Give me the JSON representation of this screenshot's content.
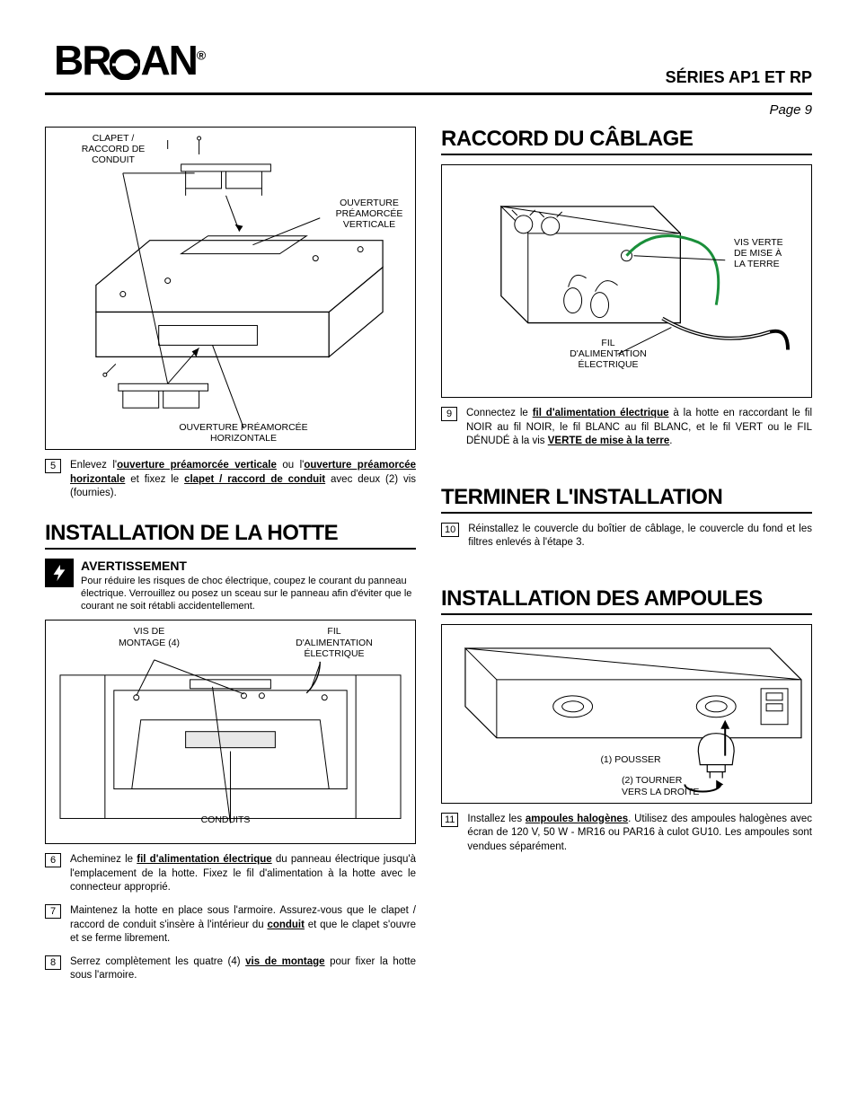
{
  "header": {
    "brand": "BROAN",
    "series": "SÉRIES AP1 ET RP",
    "page": "Page 9"
  },
  "left": {
    "diag1": {
      "label_clapet": "CLAPET /\nRACCORD DE\nCONDUIT",
      "label_vert": "OUVERTURE\nPRÉAMORCÉE\nVERTICALE",
      "label_horiz": "OUVERTURE PRÉAMORCÉE\nHORIZONTALE"
    },
    "step5_num": "5",
    "step5_html": "Enlevez l'<span class='ub'>ouverture préamorcée verticale</span> ou l'<span class='ub'>ouverture préamorcée horizontale</span> et fixez le <span class='ub'>clapet / raccord de conduit</span> avec deux (2) vis (fournies).",
    "section_install": "INSTALLATION DE LA HOTTE",
    "warn_title": "AVERTISSEMENT",
    "warn_text": "Pour réduire les risques de choc électrique, coupez le courant du panneau électrique. Verrouillez ou posez un sceau sur le panneau afin d'éviter que le courant ne soit rétabli accidentellement.",
    "diag2": {
      "label_vis": "VIS DE\nMONTAGE (4)",
      "label_fil": "FIL\nD'ALIMENTATION\nÉLECTRIQUE",
      "label_conduits": "CONDUITS"
    },
    "step6_num": "6",
    "step6_html": "Acheminez le <span class='ub'>fil d'alimentation électrique</span> du panneau électrique jusqu'à l'emplacement de la hotte. Fixez le fil d'alimentation à la hotte avec le connecteur approprié.",
    "step7_num": "7",
    "step7_html": "Maintenez la hotte en place sous l'armoire. Assurez-vous que le clapet / raccord de conduit s'insère à l'intérieur du <span class='ub'>conduit</span> et que le clapet s'ouvre et se ferme librement.",
    "step8_num": "8",
    "step8_html": "Serrez complètement les quatre (4) <span class='ub'>vis de montage</span> pour fixer la hotte sous l'armoire."
  },
  "right": {
    "section_raccord": "RACCORD DU CÂBLAGE",
    "diag3": {
      "label_vis_verte": "VIS VERTE\nDE MISE À\nLA TERRE",
      "label_fil": "FIL\nD'ALIMENTATION\nÉLECTRIQUE",
      "green_wire_color": "#1a8f3a"
    },
    "step9_num": "9",
    "step9_html": "Connectez le <span class='ub'>fil d'alimentation électrique</span> à la hotte en raccordant le fil NOIR au fil NOIR, le fil BLANC au fil BLANC, et le fil VERT ou le FIL DÉNUDÉ à la vis <span class='ub'>VERTE de mise à la terre</span>.",
    "section_terminer": "TERMINER L'INSTALLATION",
    "step10_num": "10",
    "step10_html": "Réinstallez le couvercle du boîtier de câblage, le couvercle du fond et les filtres enlevés à l'étape 3.",
    "section_ampoules": "INSTALLATION DES AMPOULES",
    "diag4": {
      "label_pousser": "(1) POUSSER",
      "label_tourner": "(2) TOURNER\nVERS LA DROITE"
    },
    "step11_num": "11",
    "step11_html": "Installez les <span class='ub'>ampoules halogènes</span>. Utilisez des ampoules halogènes avec écran de 120 V, 50 W - MR16 ou PAR16 à culot GU10. Les ampoules sont vendues séparément."
  }
}
